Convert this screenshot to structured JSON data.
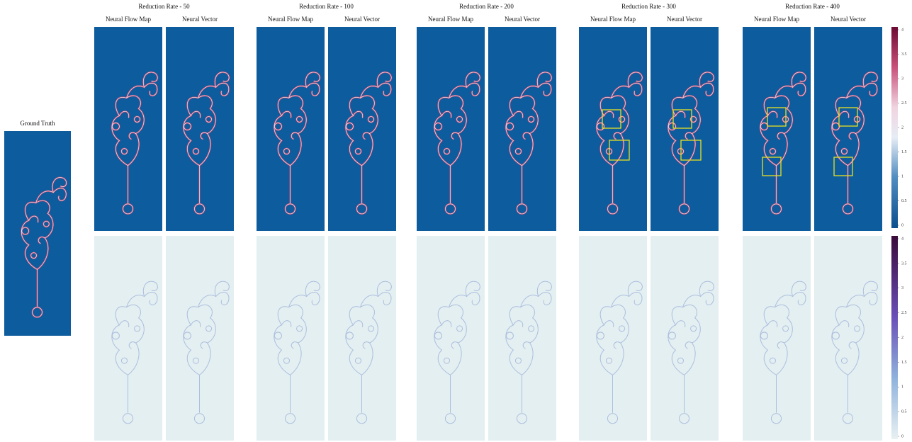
{
  "ground_truth": {
    "label": "Ground Truth"
  },
  "groups": [
    {
      "title": "Reduction Rate - 50",
      "columns": [
        "Neural Flow Map",
        "Neural Vector"
      ]
    },
    {
      "title": "Reduction Rate - 100",
      "columns": [
        "Neural Flow Map",
        "Neural Vector"
      ]
    },
    {
      "title": "Reduction Rate - 200",
      "columns": [
        "Neural Flow Map",
        "Neural Vector"
      ]
    },
    {
      "title": "Reduction Rate - 300",
      "columns": [
        "Neural Flow Map",
        "Neural Vector"
      ]
    },
    {
      "title": "Reduction Rate - 400",
      "columns": [
        "Neural Flow Map",
        "Neural Vector"
      ]
    }
  ],
  "colorbars": [
    {
      "ticks": [
        0,
        0.5,
        1,
        1.5,
        2,
        2.5,
        3,
        3.5,
        4
      ]
    },
    {
      "ticks": [
        0,
        0.5,
        1,
        1.5,
        2,
        2.5,
        3,
        3.5,
        4
      ]
    }
  ]
}
